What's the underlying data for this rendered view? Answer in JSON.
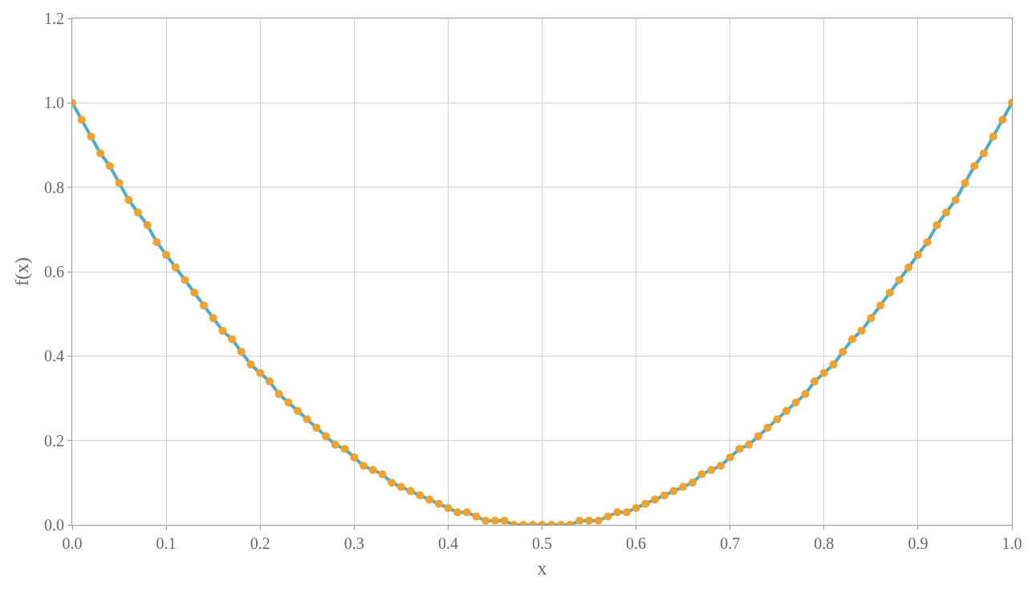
{
  "chart_data": {
    "type": "line",
    "xlabel": "x",
    "ylabel": "f(x)",
    "x": [
      0,
      0.01,
      0.02,
      0.03,
      0.04,
      0.05,
      0.06,
      0.07,
      0.08,
      0.09,
      0.1,
      0.11,
      0.12,
      0.13,
      0.14,
      0.15,
      0.16,
      0.17,
      0.18,
      0.19,
      0.2,
      0.21,
      0.22,
      0.23,
      0.24,
      0.25,
      0.26,
      0.27,
      0.28,
      0.29,
      0.3,
      0.31,
      0.32,
      0.33,
      0.34,
      0.35,
      0.36,
      0.37,
      0.38,
      0.39,
      0.4,
      0.41,
      0.42,
      0.43,
      0.44,
      0.45,
      0.46,
      0.47,
      0.48,
      0.49,
      0.5,
      0.51,
      0.52,
      0.53,
      0.54,
      0.55,
      0.56,
      0.57,
      0.58,
      0.59,
      0.6,
      0.61,
      0.62,
      0.63,
      0.64,
      0.65,
      0.66,
      0.67,
      0.68,
      0.69,
      0.7,
      0.71,
      0.72,
      0.73,
      0.74,
      0.75,
      0.76,
      0.77,
      0.78,
      0.79,
      0.8,
      0.81,
      0.82,
      0.83,
      0.84,
      0.85,
      0.86,
      0.87,
      0.88,
      0.89,
      0.9,
      0.91,
      0.92,
      0.93,
      0.94,
      0.95,
      0.96,
      0.97,
      0.98,
      0.99,
      1
    ],
    "series": [
      {
        "marker": "none",
        "color": "#4bacc6",
        "values": [
          1,
          0.96,
          0.92,
          0.88,
          0.85,
          0.81,
          0.77,
          0.74,
          0.71,
          0.67,
          0.64,
          0.61,
          0.58,
          0.55,
          0.52,
          0.49,
          0.46,
          0.44,
          0.41,
          0.38,
          0.36,
          0.34,
          0.31,
          0.29,
          0.27,
          0.25,
          0.23,
          0.21,
          0.19,
          0.18,
          0.16,
          0.14,
          0.13,
          0.12,
          0.1,
          0.09,
          0.08,
          0.07,
          0.06,
          0.05,
          0.04,
          0.03,
          0.03,
          0.02,
          0.01,
          0.01,
          0.01,
          0,
          0,
          0,
          0,
          0,
          0,
          0,
          0.01,
          0.01,
          0.01,
          0.02,
          0.03,
          0.03,
          0.04,
          0.05,
          0.06,
          0.07,
          0.08,
          0.09,
          0.1,
          0.12,
          0.13,
          0.14,
          0.16,
          0.18,
          0.19,
          0.21,
          0.23,
          0.25,
          0.27,
          0.29,
          0.31,
          0.34,
          0.36,
          0.38,
          0.41,
          0.44,
          0.46,
          0.49,
          0.52,
          0.55,
          0.58,
          0.61,
          0.64,
          0.67,
          0.71,
          0.74,
          0.77,
          0.81,
          0.85,
          0.88,
          0.92,
          0.96,
          1
        ]
      },
      {
        "type": "scatter",
        "marker": "circle",
        "color": "#f0a22e",
        "values": [
          1,
          0.96,
          0.92,
          0.88,
          0.85,
          0.81,
          0.77,
          0.74,
          0.71,
          0.67,
          0.64,
          0.61,
          0.58,
          0.55,
          0.52,
          0.49,
          0.46,
          0.44,
          0.41,
          0.38,
          0.36,
          0.34,
          0.31,
          0.29,
          0.27,
          0.25,
          0.23,
          0.21,
          0.19,
          0.18,
          0.16,
          0.14,
          0.13,
          0.12,
          0.1,
          0.09,
          0.08,
          0.07,
          0.06,
          0.05,
          0.04,
          0.03,
          0.03,
          0.02,
          0.01,
          0.01,
          0.01,
          0,
          0,
          0,
          0,
          0,
          0,
          0,
          0.01,
          0.01,
          0.01,
          0.02,
          0.03,
          0.03,
          0.04,
          0.05,
          0.06,
          0.07,
          0.08,
          0.09,
          0.1,
          0.12,
          0.13,
          0.14,
          0.16,
          0.18,
          0.19,
          0.21,
          0.23,
          0.25,
          0.27,
          0.29,
          0.31,
          0.34,
          0.36,
          0.38,
          0.41,
          0.44,
          0.46,
          0.49,
          0.52,
          0.55,
          0.58,
          0.61,
          0.64,
          0.67,
          0.71,
          0.74,
          0.77,
          0.81,
          0.85,
          0.88,
          0.92,
          0.96,
          1
        ]
      }
    ],
    "xlim": [
      0,
      1
    ],
    "xticks": [
      {
        "value": 0,
        "label": "0.0"
      },
      0.1,
      0.2,
      0.3,
      0.4,
      0.5,
      0.6,
      0.7,
      0.8,
      0.9,
      {
        "value": 1,
        "label": "1.0"
      }
    ],
    "ylim": [
      0,
      1.2
    ],
    "yticks": [
      {
        "value": 0,
        "label": "0.0"
      },
      0.2,
      0.4,
      0.6,
      0.8,
      {
        "value": 1,
        "label": "1.0"
      },
      1.2
    ],
    "grid": true
  }
}
